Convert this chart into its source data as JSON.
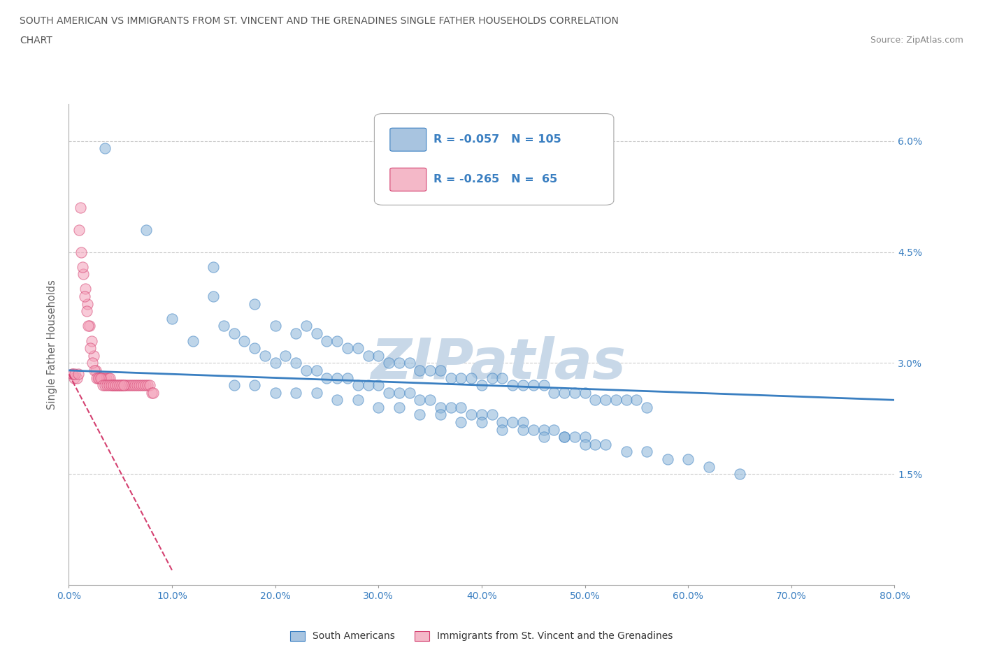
{
  "title_line1": "SOUTH AMERICAN VS IMMIGRANTS FROM ST. VINCENT AND THE GRENADINES SINGLE FATHER HOUSEHOLDS CORRELATION",
  "title_line2": "CHART",
  "source": "Source: ZipAtlas.com",
  "xlabel_ticks": [
    "0.0%",
    "10.0%",
    "20.0%",
    "30.0%",
    "40.0%",
    "50.0%",
    "60.0%",
    "70.0%",
    "80.0%"
  ],
  "ylabel": "Single Father Households",
  "ylabel_ticks_right": [
    "6.0%",
    "4.5%",
    "3.0%",
    "1.5%",
    ""
  ],
  "ylabel_ticks_vals": [
    6.0,
    4.5,
    3.0,
    1.5,
    0.0
  ],
  "xmin": 0.0,
  "xmax": 80.0,
  "ymin": 0.0,
  "ymax": 6.5,
  "watermark": "ZIPatlas",
  "blue_scatter_x": [
    3.5,
    7.5,
    14.0,
    18.0,
    20.0,
    22.0,
    23.0,
    24.0,
    25.0,
    26.0,
    27.0,
    28.0,
    29.0,
    30.0,
    31.0,
    32.0,
    33.0,
    34.0,
    35.0,
    36.0,
    37.0,
    38.0,
    39.0,
    40.0,
    41.0,
    42.0,
    43.0,
    44.0,
    45.0,
    46.0,
    47.0,
    48.0,
    49.0,
    50.0,
    51.0,
    52.0,
    53.0,
    54.0,
    55.0,
    56.0,
    10.0,
    12.0,
    14.0,
    15.0,
    16.0,
    17.0,
    18.0,
    19.0,
    20.0,
    21.0,
    22.0,
    23.0,
    24.0,
    25.0,
    26.0,
    27.0,
    28.0,
    29.0,
    30.0,
    31.0,
    32.0,
    33.0,
    34.0,
    35.0,
    36.0,
    37.0,
    38.0,
    39.0,
    40.0,
    41.0,
    42.0,
    43.0,
    44.0,
    45.0,
    46.0,
    47.0,
    48.0,
    49.0,
    50.0,
    51.0,
    16.0,
    18.0,
    20.0,
    22.0,
    24.0,
    26.0,
    28.0,
    30.0,
    32.0,
    34.0,
    36.0,
    38.0,
    40.0,
    42.0,
    44.0,
    46.0,
    48.0,
    50.0,
    52.0,
    54.0,
    56.0,
    58.0,
    60.0,
    62.0,
    65.0
  ],
  "blue_scatter_y": [
    5.9,
    4.8,
    4.3,
    3.8,
    3.5,
    3.4,
    3.5,
    3.4,
    3.3,
    3.3,
    3.2,
    3.2,
    3.1,
    3.1,
    3.0,
    3.0,
    3.0,
    2.9,
    2.9,
    2.9,
    2.8,
    2.8,
    2.8,
    2.7,
    2.8,
    2.8,
    2.7,
    2.7,
    2.7,
    2.7,
    2.6,
    2.6,
    2.6,
    2.6,
    2.5,
    2.5,
    2.5,
    2.5,
    2.5,
    2.4,
    3.6,
    3.3,
    3.9,
    3.5,
    3.4,
    3.3,
    3.2,
    3.1,
    3.0,
    3.1,
    3.0,
    2.9,
    2.9,
    2.8,
    2.8,
    2.8,
    2.7,
    2.7,
    2.7,
    2.6,
    2.6,
    2.6,
    2.5,
    2.5,
    2.4,
    2.4,
    2.4,
    2.3,
    2.3,
    2.3,
    2.2,
    2.2,
    2.2,
    2.1,
    2.1,
    2.1,
    2.0,
    2.0,
    2.0,
    1.9,
    2.7,
    2.7,
    2.6,
    2.6,
    2.6,
    2.5,
    2.5,
    2.4,
    2.4,
    2.3,
    2.3,
    2.2,
    2.2,
    2.1,
    2.1,
    2.0,
    2.0,
    1.9,
    1.9,
    1.8,
    1.8,
    1.7,
    1.7,
    1.6,
    1.5
  ],
  "pink_scatter_x": [
    0.3,
    0.5,
    0.8,
    1.0,
    1.2,
    1.4,
    1.6,
    1.8,
    2.0,
    2.2,
    2.4,
    2.6,
    2.8,
    3.0,
    3.2,
    3.4,
    3.6,
    3.8,
    4.0,
    4.2,
    4.4,
    4.6,
    4.8,
    5.0,
    5.2,
    5.4,
    5.6,
    5.8,
    6.0,
    6.2,
    6.4,
    6.6,
    6.8,
    7.0,
    7.2,
    7.4,
    7.6,
    7.8,
    8.0,
    8.2,
    0.4,
    0.6,
    0.9,
    1.1,
    1.3,
    1.5,
    1.7,
    1.9,
    2.1,
    2.3,
    2.5,
    2.7,
    2.9,
    3.1,
    3.3,
    3.5,
    3.7,
    3.9,
    4.1,
    4.3,
    4.5,
    4.7,
    4.9,
    5.1,
    5.3
  ],
  "pink_scatter_y": [
    2.85,
    2.8,
    2.8,
    4.8,
    4.5,
    4.2,
    4.0,
    3.8,
    3.5,
    3.3,
    3.1,
    2.9,
    2.8,
    2.8,
    2.8,
    2.8,
    2.8,
    2.8,
    2.8,
    2.7,
    2.7,
    2.7,
    2.7,
    2.7,
    2.7,
    2.7,
    2.7,
    2.7,
    2.7,
    2.7,
    2.7,
    2.7,
    2.7,
    2.7,
    2.7,
    2.7,
    2.7,
    2.7,
    2.6,
    2.6,
    2.85,
    2.85,
    2.85,
    5.1,
    4.3,
    3.9,
    3.7,
    3.5,
    3.2,
    3.0,
    2.9,
    2.8,
    2.8,
    2.8,
    2.7,
    2.7,
    2.7,
    2.7,
    2.7,
    2.7,
    2.7,
    2.7,
    2.7,
    2.7,
    2.7
  ],
  "blue_line_x": [
    0.0,
    80.0
  ],
  "blue_line_y": [
    2.9,
    2.5
  ],
  "pink_line_x": [
    0.0,
    10.0
  ],
  "pink_line_y": [
    2.85,
    0.2
  ],
  "blue_color": "#8ab4d8",
  "pink_color": "#f4a0b8",
  "blue_line_color": "#3a7fc1",
  "pink_line_color": "#d44070",
  "grid_color": "#cccccc",
  "background_color": "#ffffff",
  "title_color": "#555555",
  "axis_label_color": "#666666",
  "tick_label_color_y": "#3a7fc1",
  "tick_label_color_x": "#3a7fc1",
  "watermark_color": "#c8d8e8",
  "legend_box_blue": "#a8c4e0",
  "legend_box_pink": "#f4b8c8",
  "legend_text_color": "#3a7fc1",
  "source_color": "#888888"
}
